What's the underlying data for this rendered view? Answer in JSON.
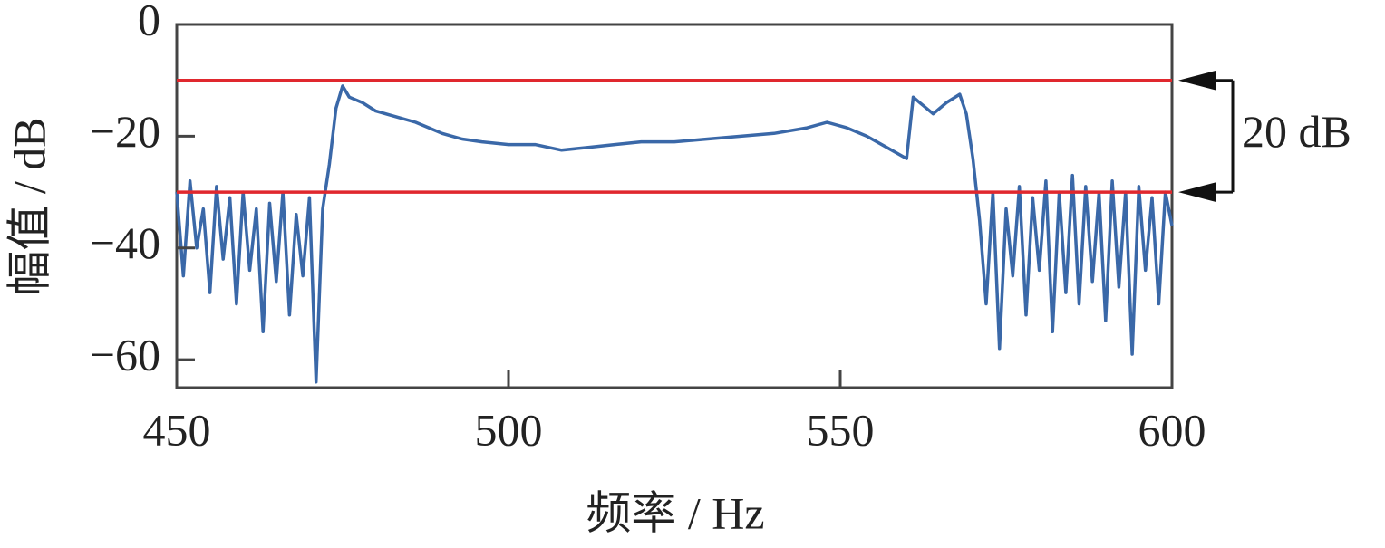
{
  "chart_data": {
    "type": "line",
    "x_label": "频率 / Hz",
    "y_label": "幅值 / dB",
    "x": [
      450,
      451,
      452,
      453,
      454,
      455,
      456,
      457,
      458,
      459,
      460,
      461,
      462,
      463,
      464,
      465,
      466,
      467,
      468,
      469,
      470,
      471,
      472,
      473,
      474,
      475,
      476,
      478,
      480,
      483,
      486,
      488,
      490,
      493,
      496,
      500,
      504,
      508,
      512,
      516,
      520,
      525,
      530,
      535,
      540,
      545,
      548,
      551,
      554,
      557,
      560,
      561,
      562,
      564,
      566,
      568,
      569,
      570,
      571,
      572,
      573,
      574,
      575,
      576,
      577,
      578,
      579,
      580,
      581,
      582,
      583,
      584,
      585,
      586,
      587,
      588,
      589,
      590,
      591,
      592,
      593,
      594,
      595,
      596,
      597,
      598,
      599,
      600
    ],
    "series": [
      {
        "color": "#3a68a8",
        "values": [
          -30,
          -45,
          -28,
          -40,
          -33,
          -48,
          -29,
          -42,
          -31,
          -50,
          -30,
          -44,
          -33,
          -55,
          -32,
          -46,
          -30,
          -52,
          -34,
          -45,
          -31,
          -64,
          -33,
          -25,
          -15,
          -11,
          -13,
          -14,
          -15.5,
          -16.5,
          -17.5,
          -18.5,
          -19.5,
          -20.5,
          -21,
          -21.5,
          -21.5,
          -22.5,
          -22,
          -21.5,
          -21,
          -21,
          -20.5,
          -20,
          -19.5,
          -18.5,
          -17.5,
          -18.5,
          -20,
          -22,
          -24,
          -13,
          -14,
          -16,
          -14,
          -12.5,
          -16,
          -24,
          -35,
          -50,
          -30,
          -58,
          -33,
          -45,
          -29,
          -52,
          -31,
          -44,
          -28,
          -55,
          -30,
          -48,
          -27,
          -50,
          -29,
          -46,
          -30,
          -53,
          -28,
          -47,
          -30,
          -59,
          -29,
          -44,
          -31,
          -50,
          -30,
          -36
        ]
      }
    ],
    "xlim": [
      450,
      600
    ],
    "xticks": [
      450,
      500,
      550,
      600
    ],
    "ylim": [
      -65,
      0
    ],
    "yticks": [
      0,
      {
        "value": -20,
        "label": "−20"
      },
      {
        "value": -40,
        "label": "−40"
      },
      {
        "value": -60,
        "label": "−60"
      }
    ],
    "hlines": [
      {
        "value": -10,
        "color": "#e0282e"
      },
      {
        "value": -30,
        "color": "#e0282e"
      }
    ],
    "annotation": "20 dB"
  }
}
